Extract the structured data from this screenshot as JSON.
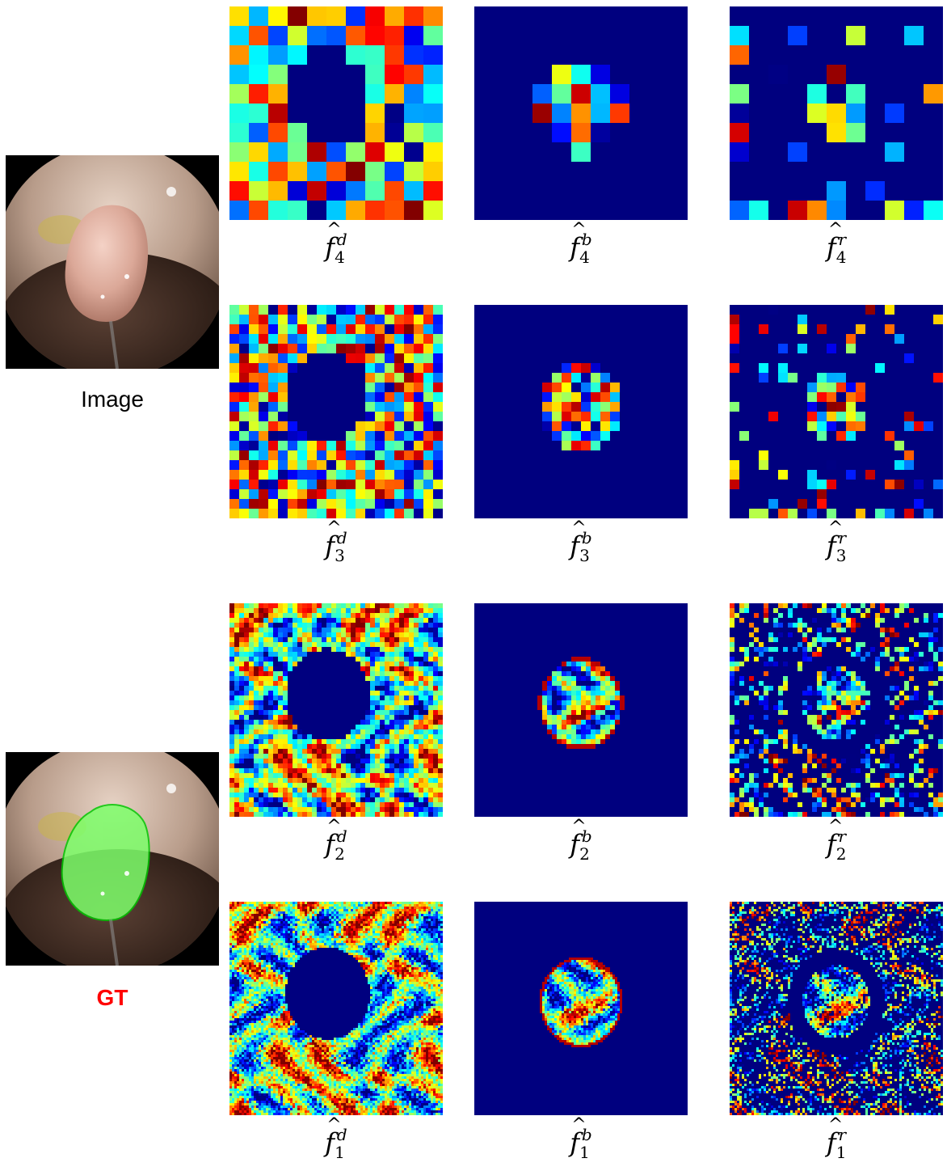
{
  "labels": {
    "image": "Image",
    "gt": "GT"
  },
  "grid": {
    "columns": [
      {
        "superscript": "d",
        "kind": "outside"
      },
      {
        "superscript": "b",
        "kind": "inside"
      },
      {
        "superscript": "r",
        "kind": "ring"
      }
    ],
    "rows": [
      {
        "level": "4",
        "resolution": 11
      },
      {
        "level": "3",
        "resolution": 22
      },
      {
        "level": "2",
        "resolution": 44
      },
      {
        "level": "1",
        "resolution": 88
      }
    ]
  },
  "colors": {
    "background_blue": "#00007f",
    "gt_label": "#ff0000",
    "gt_mask": "#7dff6a",
    "gt_contour": "#00c800"
  }
}
